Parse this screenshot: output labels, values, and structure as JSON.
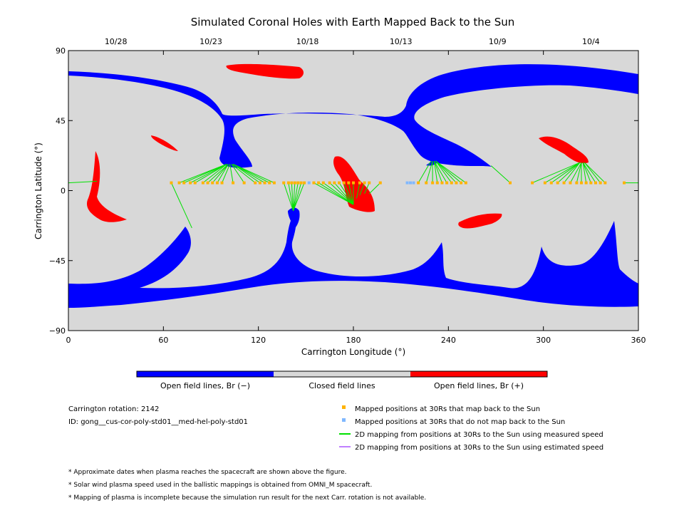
{
  "chart_data": {
    "type": "map",
    "title": "Simulated Coronal Holes with Earth Mapped Back to the Sun",
    "xlabel": "Carrington Longitude (°)",
    "ylabel": "Carrington Latitude (°)",
    "xlim": [
      0,
      360
    ],
    "ylim": [
      -90,
      90
    ],
    "x_ticks": [
      "0",
      "60",
      "120",
      "180",
      "240",
      "300",
      "360"
    ],
    "y_ticks": [
      "90",
      "45",
      "0",
      "−45",
      "−90"
    ],
    "top_axis_dates": [
      {
        "label": "10/28",
        "lon": 30
      },
      {
        "label": "10/23",
        "lon": 90
      },
      {
        "label": "10/18",
        "lon": 151
      },
      {
        "label": "10/13",
        "lon": 210
      },
      {
        "label": "10/9",
        "lon": 271
      },
      {
        "label": "10/4",
        "lon": 330
      }
    ],
    "colors": {
      "background": "#d8d8d8",
      "open_negative": "#0000ff",
      "closed": "#d8d8d8",
      "open_positive": "#ff0000",
      "mapped": "#ffb300",
      "not_mapped": "#80b8ff",
      "measured_line": "#00e000",
      "estimated_line": "#c080ff"
    },
    "mapped_points": [
      {
        "lon": 65,
        "lat": 5
      },
      {
        "lon": 70,
        "lat": 5
      },
      {
        "lon": 73,
        "lat": 5
      },
      {
        "lon": 77,
        "lat": 5
      },
      {
        "lon": 80,
        "lat": 5
      },
      {
        "lon": 85,
        "lat": 5
      },
      {
        "lon": 88,
        "lat": 5
      },
      {
        "lon": 91,
        "lat": 5
      },
      {
        "lon": 94,
        "lat": 5
      },
      {
        "lon": 97,
        "lat": 5
      },
      {
        "lon": 104,
        "lat": 5
      },
      {
        "lon": 111,
        "lat": 5
      },
      {
        "lon": 118,
        "lat": 5
      },
      {
        "lon": 121,
        "lat": 5
      },
      {
        "lon": 124,
        "lat": 5
      },
      {
        "lon": 127,
        "lat": 5
      },
      {
        "lon": 130,
        "lat": 5
      },
      {
        "lon": 136,
        "lat": 5
      },
      {
        "lon": 139,
        "lat": 5
      },
      {
        "lon": 141,
        "lat": 5
      },
      {
        "lon": 143,
        "lat": 5
      },
      {
        "lon": 145,
        "lat": 5
      },
      {
        "lon": 147,
        "lat": 5
      },
      {
        "lon": 149,
        "lat": 5
      },
      {
        "lon": 155,
        "lat": 5
      },
      {
        "lon": 158,
        "lat": 5
      },
      {
        "lon": 161,
        "lat": 5
      },
      {
        "lon": 165,
        "lat": 5
      },
      {
        "lon": 168,
        "lat": 5
      },
      {
        "lon": 171,
        "lat": 5
      },
      {
        "lon": 174,
        "lat": 5
      },
      {
        "lon": 177,
        "lat": 5
      },
      {
        "lon": 180,
        "lat": 5
      },
      {
        "lon": 184,
        "lat": 5
      },
      {
        "lon": 187,
        "lat": 5
      },
      {
        "lon": 190,
        "lat": 5
      },
      {
        "lon": 197,
        "lat": 5
      },
      {
        "lon": 221,
        "lat": 5
      },
      {
        "lon": 226,
        "lat": 5
      },
      {
        "lon": 230,
        "lat": 5
      },
      {
        "lon": 233,
        "lat": 5
      },
      {
        "lon": 236,
        "lat": 5
      },
      {
        "lon": 239,
        "lat": 5
      },
      {
        "lon": 242,
        "lat": 5
      },
      {
        "lon": 245,
        "lat": 5
      },
      {
        "lon": 248,
        "lat": 5
      },
      {
        "lon": 251,
        "lat": 5
      },
      {
        "lon": 279,
        "lat": 5
      },
      {
        "lon": 293,
        "lat": 5
      },
      {
        "lon": 301,
        "lat": 5
      },
      {
        "lon": 305,
        "lat": 5
      },
      {
        "lon": 309,
        "lat": 5
      },
      {
        "lon": 313,
        "lat": 5
      },
      {
        "lon": 317,
        "lat": 5
      },
      {
        "lon": 321,
        "lat": 5
      },
      {
        "lon": 324,
        "lat": 5
      },
      {
        "lon": 327,
        "lat": 5
      },
      {
        "lon": 330,
        "lat": 5
      },
      {
        "lon": 333,
        "lat": 5
      },
      {
        "lon": 336,
        "lat": 5
      },
      {
        "lon": 339,
        "lat": 5
      },
      {
        "lon": 351,
        "lat": 5
      }
    ],
    "unmapped_points": [
      {
        "lon": 152,
        "lat": 5
      },
      {
        "lon": 214,
        "lat": 5
      },
      {
        "lon": 216,
        "lat": 5
      },
      {
        "lon": 218,
        "lat": 5
      }
    ],
    "field_lines": [
      {
        "from": [
          65,
          5
        ],
        "to": [
          78,
          -24
        ]
      },
      {
        "from": [
          70,
          5
        ],
        "to": [
          100,
          17
        ]
      },
      {
        "from": [
          73,
          5
        ],
        "to": [
          100,
          17
        ]
      },
      {
        "from": [
          77,
          5
        ],
        "to": [
          100,
          17
        ]
      },
      {
        "from": [
          80,
          5
        ],
        "to": [
          100,
          17
        ]
      },
      {
        "from": [
          85,
          5
        ],
        "to": [
          100,
          17
        ]
      },
      {
        "from": [
          88,
          5
        ],
        "to": [
          101,
          17
        ]
      },
      {
        "from": [
          91,
          5
        ],
        "to": [
          101,
          17
        ]
      },
      {
        "from": [
          94,
          5
        ],
        "to": [
          101,
          17
        ]
      },
      {
        "from": [
          97,
          5
        ],
        "to": [
          102,
          17
        ]
      },
      {
        "from": [
          104,
          5
        ],
        "to": [
          102,
          17
        ]
      },
      {
        "from": [
          111,
          5
        ],
        "to": [
          103,
          17
        ]
      },
      {
        "from": [
          118,
          5
        ],
        "to": [
          103,
          17
        ]
      },
      {
        "from": [
          121,
          5
        ],
        "to": [
          104,
          17
        ]
      },
      {
        "from": [
          124,
          5
        ],
        "to": [
          104,
          17
        ]
      },
      {
        "from": [
          127,
          5
        ],
        "to": [
          104,
          17
        ]
      },
      {
        "from": [
          130,
          5
        ],
        "to": [
          104,
          17
        ]
      },
      {
        "from": [
          136,
          5
        ],
        "to": [
          142,
          -13
        ]
      },
      {
        "from": [
          139,
          5
        ],
        "to": [
          142,
          -13
        ]
      },
      {
        "from": [
          141,
          5
        ],
        "to": [
          142,
          -13
        ]
      },
      {
        "from": [
          143,
          5
        ],
        "to": [
          142,
          -13
        ]
      },
      {
        "from": [
          145,
          5
        ],
        "to": [
          142,
          -13
        ]
      },
      {
        "from": [
          147,
          5
        ],
        "to": [
          142,
          -13
        ]
      },
      {
        "from": [
          149,
          5
        ],
        "to": [
          142,
          -13
        ]
      },
      {
        "from": [
          155,
          5
        ],
        "to": [
          180,
          -9
        ]
      },
      {
        "from": [
          158,
          5
        ],
        "to": [
          180,
          -9
        ]
      },
      {
        "from": [
          161,
          5
        ],
        "to": [
          180,
          -9
        ]
      },
      {
        "from": [
          165,
          5
        ],
        "to": [
          180,
          -9
        ]
      },
      {
        "from": [
          168,
          5
        ],
        "to": [
          180,
          -9
        ]
      },
      {
        "from": [
          171,
          5
        ],
        "to": [
          180,
          -9
        ]
      },
      {
        "from": [
          174,
          5
        ],
        "to": [
          180,
          -9
        ]
      },
      {
        "from": [
          177,
          5
        ],
        "to": [
          180,
          -9
        ]
      },
      {
        "from": [
          180,
          5
        ],
        "to": [
          180,
          -9
        ]
      },
      {
        "from": [
          184,
          5
        ],
        "to": [
          182,
          -5
        ]
      },
      {
        "from": [
          187,
          5
        ],
        "to": [
          184,
          -3
        ]
      },
      {
        "from": [
          190,
          5
        ],
        "to": [
          187,
          -2
        ]
      },
      {
        "from": [
          197,
          5
        ],
        "to": [
          190,
          -2
        ]
      },
      {
        "from": [
          221,
          5
        ],
        "to": [
          229,
          19
        ]
      },
      {
        "from": [
          226,
          5
        ],
        "to": [
          230,
          19
        ]
      },
      {
        "from": [
          230,
          5
        ],
        "to": [
          230,
          19
        ]
      },
      {
        "from": [
          233,
          5
        ],
        "to": [
          231,
          19
        ]
      },
      {
        "from": [
          236,
          5
        ],
        "to": [
          231,
          19
        ]
      },
      {
        "from": [
          239,
          5
        ],
        "to": [
          231,
          19
        ]
      },
      {
        "from": [
          242,
          5
        ],
        "to": [
          232,
          19
        ]
      },
      {
        "from": [
          245,
          5
        ],
        "to": [
          232,
          19
        ]
      },
      {
        "from": [
          248,
          5
        ],
        "to": [
          232,
          19
        ]
      },
      {
        "from": [
          251,
          5
        ],
        "to": [
          232,
          19
        ]
      },
      {
        "from": [
          279,
          5
        ],
        "to": [
          267,
          16
        ]
      },
      {
        "from": [
          293,
          5
        ],
        "to": [
          323,
          18
        ]
      },
      {
        "from": [
          301,
          5
        ],
        "to": [
          323,
          18
        ]
      },
      {
        "from": [
          305,
          5
        ],
        "to": [
          323,
          18
        ]
      },
      {
        "from": [
          309,
          5
        ],
        "to": [
          323,
          18
        ]
      },
      {
        "from": [
          313,
          5
        ],
        "to": [
          323,
          18
        ]
      },
      {
        "from": [
          317,
          5
        ],
        "to": [
          324,
          18
        ]
      },
      {
        "from": [
          321,
          5
        ],
        "to": [
          324,
          18
        ]
      },
      {
        "from": [
          324,
          5
        ],
        "to": [
          324,
          18
        ]
      },
      {
        "from": [
          327,
          5
        ],
        "to": [
          325,
          18
        ]
      },
      {
        "from": [
          330,
          5
        ],
        "to": [
          325,
          18
        ]
      },
      {
        "from": [
          333,
          5
        ],
        "to": [
          325,
          18
        ]
      },
      {
        "from": [
          336,
          5
        ],
        "to": [
          326,
          18
        ]
      },
      {
        "from": [
          339,
          5
        ],
        "to": [
          326,
          18
        ]
      },
      {
        "from": [
          351,
          5
        ],
        "to": [
          360,
          5
        ]
      },
      {
        "from": [
          0,
          5
        ],
        "to": [
          18,
          6
        ]
      }
    ]
  },
  "colorbar": {
    "neg_label": "Open field lines, Br (−)",
    "closed_label": "Closed field lines",
    "pos_label": "Open field lines, Br (+)"
  },
  "info": {
    "rotation": "Carrington rotation: 2142",
    "id": "ID: gong__cus-cor-poly-std01__med-hel-poly-std01"
  },
  "legend": {
    "mapped": "Mapped positions at 30Rs that map back to the Sun",
    "not_mapped": "Mapped positions at 30Rs that do not map back to the Sun",
    "measured": "2D mapping from positions at 30Rs to the Sun using measured speed",
    "estimated": "2D mapping from positions at 30Rs to the Sun using estimated speed"
  },
  "notes": [
    "* Approximate dates when plasma reaches the spacecraft are shown above the figure.",
    "* Solar wind plasma speed used in the ballistic mappings is obtained from OMNI_M spacecraft.",
    "* Mapping of plasma is incomplete because the simulation run result for the next Carr. rotation is not available."
  ]
}
